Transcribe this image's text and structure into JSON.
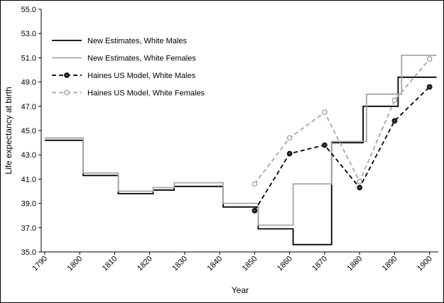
{
  "chart_data": {
    "type": "line",
    "title": "",
    "xlabel": "Year",
    "ylabel": "Life expectancy at birth",
    "ylim": [
      35.0,
      55.0
    ],
    "ytick_step": 2.0,
    "xlim": [
      1789,
      1902.5
    ],
    "xticks": [
      1790,
      1800,
      1810,
      1820,
      1830,
      1840,
      1850,
      1860,
      1870,
      1880,
      1890,
      1900
    ],
    "grid": false,
    "legend_position": "top-left-inside",
    "axis_color": "#000000",
    "series": [
      {
        "name": "New Estimates, White Males",
        "color": "#000000",
        "dash": "solid",
        "marker": "none",
        "step": true,
        "points": [
          [
            1790,
            44.2
          ],
          [
            1801,
            44.2
          ],
          [
            1801,
            41.3
          ],
          [
            1811,
            41.3
          ],
          [
            1811,
            39.8
          ],
          [
            1821,
            39.8
          ],
          [
            1821,
            40.1
          ],
          [
            1827,
            40.1
          ],
          [
            1827,
            40.4
          ],
          [
            1841,
            40.4
          ],
          [
            1841,
            38.7
          ],
          [
            1851,
            38.7
          ],
          [
            1851,
            36.9
          ],
          [
            1861,
            36.9
          ],
          [
            1861,
            35.6
          ],
          [
            1872,
            35.6
          ],
          [
            1872,
            44.0
          ],
          [
            1881,
            44.0
          ],
          [
            1881,
            47.0
          ],
          [
            1891,
            47.0
          ],
          [
            1891,
            49.4
          ],
          [
            1902,
            49.4
          ]
        ]
      },
      {
        "name": "New Estimates, White Females",
        "color": "#a6a6a6",
        "dash": "solid",
        "marker": "none",
        "step": true,
        "points": [
          [
            1790,
            44.4
          ],
          [
            1801,
            44.4
          ],
          [
            1801,
            41.5
          ],
          [
            1811,
            41.5
          ],
          [
            1811,
            40.0
          ],
          [
            1821,
            40.0
          ],
          [
            1821,
            40.3
          ],
          [
            1827,
            40.3
          ],
          [
            1827,
            40.7
          ],
          [
            1841,
            40.7
          ],
          [
            1841,
            39.0
          ],
          [
            1851,
            39.0
          ],
          [
            1851,
            37.2
          ],
          [
            1861,
            37.2
          ],
          [
            1861,
            40.6
          ],
          [
            1872,
            40.6
          ],
          [
            1872,
            44.1
          ],
          [
            1882,
            44.1
          ],
          [
            1882,
            48.0
          ],
          [
            1892,
            48.0
          ],
          [
            1892,
            51.2
          ],
          [
            1902,
            51.2
          ]
        ]
      },
      {
        "name": "Haines US Model, White Males",
        "color": "#000000",
        "dash": "dashed",
        "marker": "filled-circle",
        "marker_color": "#1a1a1a",
        "marker_center_color": "#6b6b2a",
        "step": false,
        "points": [
          [
            1850,
            38.4
          ],
          [
            1860,
            43.1
          ],
          [
            1870,
            43.8
          ],
          [
            1880,
            40.3
          ],
          [
            1890,
            45.8
          ],
          [
            1900,
            48.6
          ]
        ]
      },
      {
        "name": "Haines US Model, White Females",
        "color": "#a6a6a6",
        "dash": "dashed",
        "marker": "open-circle",
        "marker_color": "#8f8fb4",
        "step": false,
        "points": [
          [
            1850,
            40.6
          ],
          [
            1860,
            44.4
          ],
          [
            1870,
            46.5
          ],
          [
            1880,
            40.8
          ],
          [
            1890,
            47.5
          ],
          [
            1900,
            50.9
          ]
        ]
      }
    ]
  }
}
